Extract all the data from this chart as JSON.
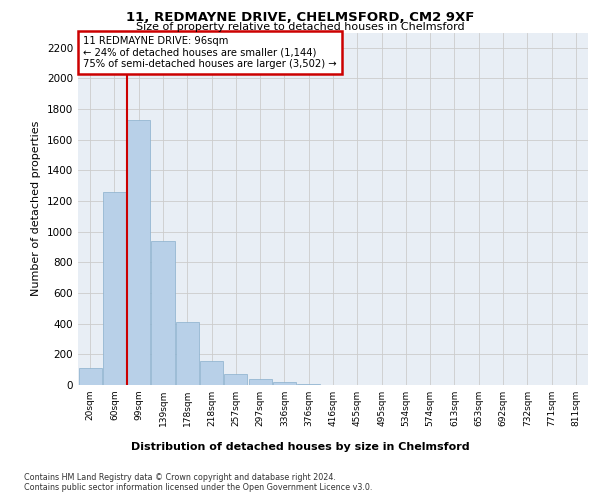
{
  "title": "11, REDMAYNE DRIVE, CHELMSFORD, CM2 9XF",
  "subtitle": "Size of property relative to detached houses in Chelmsford",
  "xlabel": "Distribution of detached houses by size in Chelmsford",
  "ylabel": "Number of detached properties",
  "categories": [
    "20sqm",
    "60sqm",
    "99sqm",
    "139sqm",
    "178sqm",
    "218sqm",
    "257sqm",
    "297sqm",
    "336sqm",
    "376sqm",
    "416sqm",
    "455sqm",
    "495sqm",
    "534sqm",
    "574sqm",
    "613sqm",
    "653sqm",
    "692sqm",
    "732sqm",
    "771sqm",
    "811sqm"
  ],
  "values": [
    110,
    1260,
    1730,
    940,
    410,
    155,
    70,
    38,
    22,
    5,
    2,
    0,
    0,
    0,
    0,
    0,
    0,
    0,
    0,
    0,
    0
  ],
  "bar_color": "#b8d0e8",
  "bar_edge_color": "#8ab0cc",
  "redline_index": 2,
  "redline_label": "11 REDMAYNE DRIVE: 96sqm",
  "annotation_line2": "← 24% of detached houses are smaller (1,144)",
  "annotation_line3": "75% of semi-detached houses are larger (3,502) →",
  "annotation_box_color": "#ffffff",
  "annotation_border_color": "#cc0000",
  "redline_color": "#cc0000",
  "ylim": [
    0,
    2300
  ],
  "yticks": [
    0,
    200,
    400,
    600,
    800,
    1000,
    1200,
    1400,
    1600,
    1800,
    2000,
    2200
  ],
  "grid_color": "#cccccc",
  "bg_color": "#e8eef5",
  "fig_bg_color": "#ffffff",
  "footnote1": "Contains HM Land Registry data © Crown copyright and database right 2024.",
  "footnote2": "Contains public sector information licensed under the Open Government Licence v3.0."
}
